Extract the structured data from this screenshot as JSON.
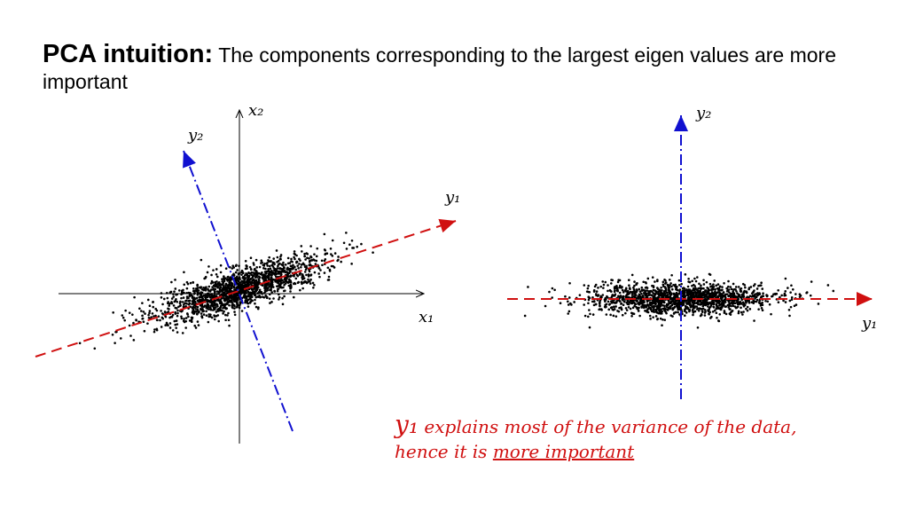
{
  "header": {
    "title_bold": "PCA intuition:",
    "title_rest": "The components corresponding to the largest eigen values are more important"
  },
  "left_plot": {
    "x_axis_label": "x₁",
    "y_axis_label": "x₂",
    "pc1_label": "y₁",
    "pc2_label": "y₂"
  },
  "right_plot": {
    "pc1_label": "y₁",
    "pc2_label": "y₂"
  },
  "annotation": {
    "symbol": "y₁",
    "text": "explains most of the variance of the data,",
    "line2": "hence it is",
    "emphasis": "more important"
  }
}
